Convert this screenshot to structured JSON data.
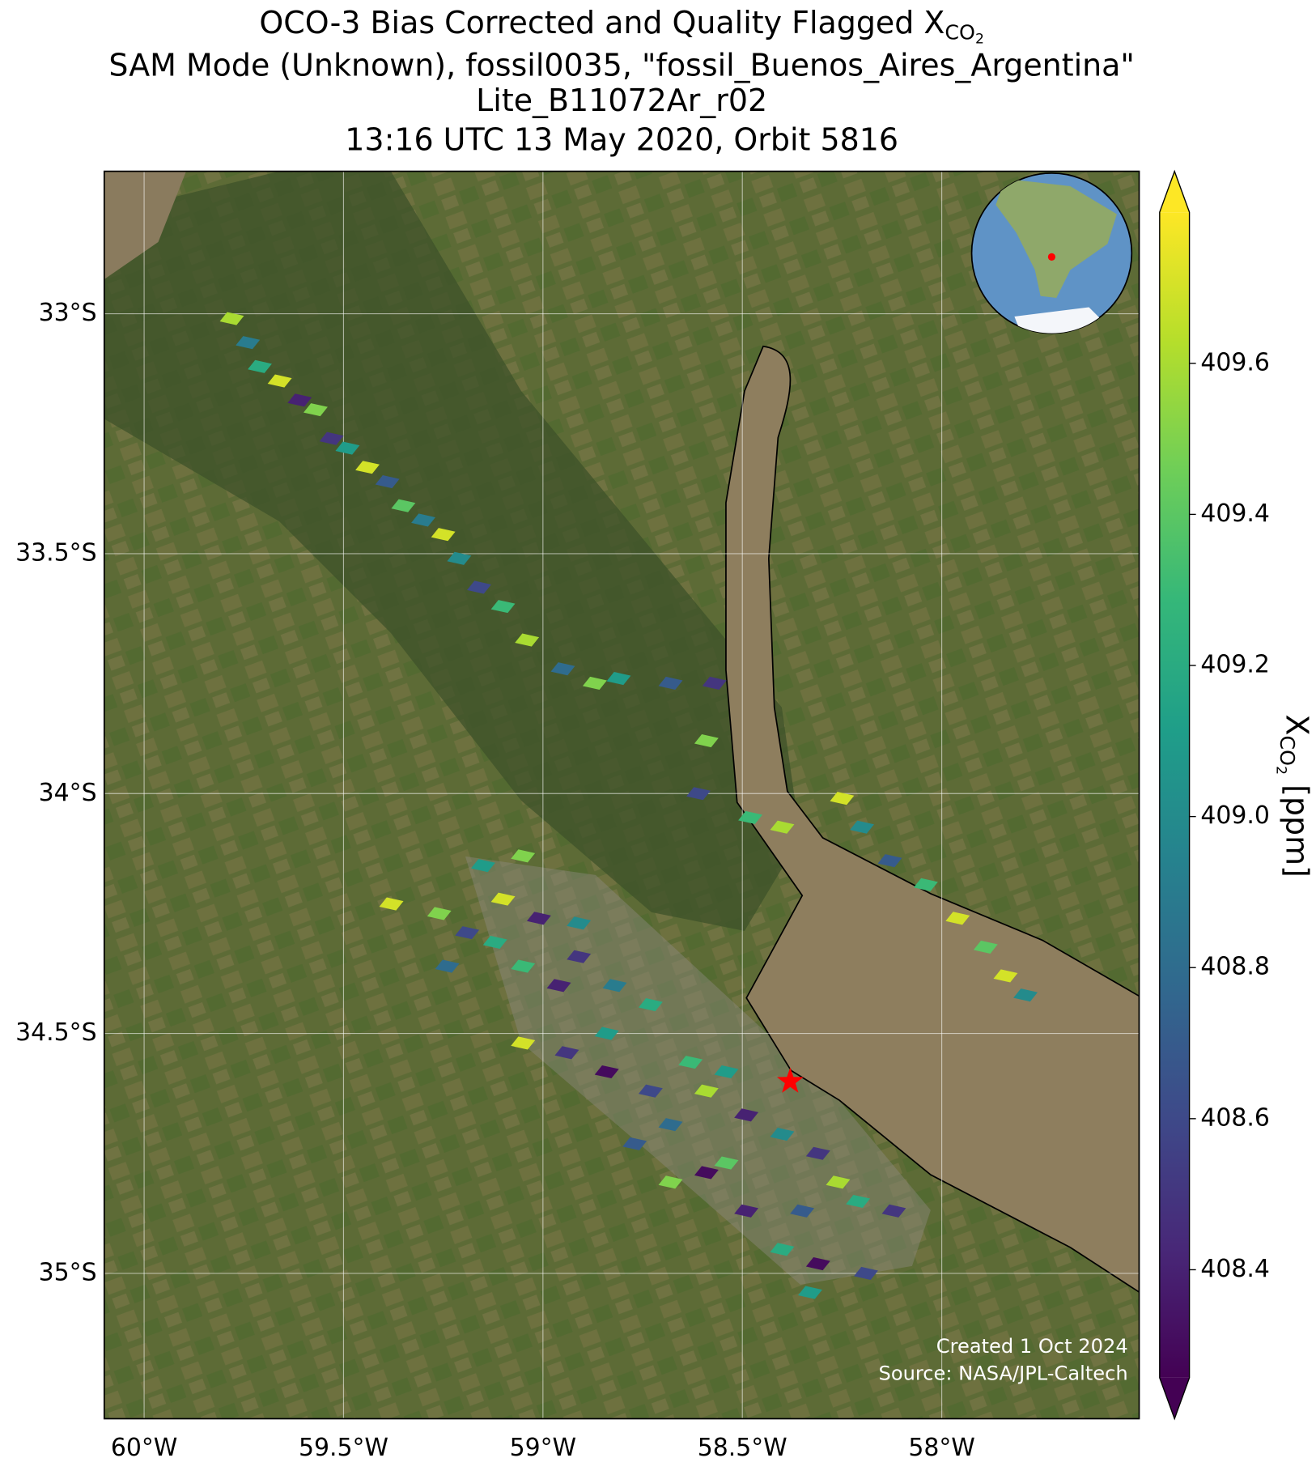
{
  "chart_data": {
    "type": "map",
    "title": {
      "text": "OCO-3 Bias Corrected and Quality Flagged X",
      "subscript": "CO",
      "subsubscript": "2"
    },
    "subtitle": [
      "SAM Mode (Unknown), fossil0035, \"fossil_Buenos_Aires_Argentina\"",
      "Lite_B11072Ar_r02",
      "13:16 UTC 13 May 2020, Orbit 5816"
    ],
    "xlim": [
      -60.1,
      -57.505
    ],
    "ylim": [
      -35.303,
      -32.703
    ],
    "xticks": [
      {
        "value": -60,
        "label": "60°W"
      },
      {
        "value": -59.5,
        "label": "59.5°W"
      },
      {
        "value": -59,
        "label": "59°W"
      },
      {
        "value": -58.5,
        "label": "58.5°W"
      },
      {
        "value": -58,
        "label": "58°W"
      }
    ],
    "yticks": [
      {
        "value": -33,
        "label": "33°S"
      },
      {
        "value": -33.5,
        "label": "33.5°S"
      },
      {
        "value": -34,
        "label": "34°S"
      },
      {
        "value": -34.5,
        "label": "34.5°S"
      },
      {
        "value": -35,
        "label": "35°S"
      }
    ],
    "grid": true,
    "colormap": "viridis",
    "clim": [
      408.257,
      409.8
    ],
    "colorbar_ticks": [
      408.4,
      408.6,
      408.8,
      {
        "value": 409,
        "label": "409.0"
      },
      409.2,
      409.4,
      409.6
    ],
    "colorbar_label": {
      "text": "X",
      "subscript": "CO",
      "subsubscript": "2",
      "unit": " [ppm]"
    },
    "site": {
      "x": -58.38,
      "y": -34.6,
      "color": "#ff0000"
    },
    "credits": [
      "Created 1 Oct 2024",
      "Source: NASA/JPL-Caltech"
    ],
    "soundings": {
      "x": [
        -59.78,
        -59.74,
        -59.71,
        -59.66,
        -59.61,
        -59.57,
        -59.53,
        -59.49,
        -59.44,
        -59.39,
        -59.35,
        -59.3,
        -59.25,
        -59.21,
        -59.16,
        -59.1,
        -59.04,
        -58.95,
        -58.87,
        -58.81,
        -58.68,
        -58.57,
        -58.59,
        -58.61,
        -58.48,
        -58.4,
        -58.25,
        -58.2,
        -58.13,
        -58.04,
        -57.96,
        -57.89,
        -57.84,
        -57.79,
        -59.38,
        -59.26,
        -59.19,
        -59.12,
        -59.24,
        -59.15,
        -59.05,
        -59.1,
        -59.01,
        -58.91,
        -58.91,
        -59.05,
        -58.96,
        -58.82,
        -58.73,
        -59.05,
        -58.94,
        -58.84,
        -58.73,
        -58.63,
        -58.54,
        -58.59,
        -58.68,
        -58.49,
        -58.4,
        -58.31,
        -58.26,
        -58.59,
        -58.68,
        -58.49,
        -58.35,
        -58.21,
        -58.12,
        -58.4,
        -58.31,
        -58.33,
        -58.19,
        -58.84,
        -58.77,
        -58.54
      ],
      "y": [
        -33.01,
        -33.06,
        -33.11,
        -33.14,
        -33.18,
        -33.2,
        -33.26,
        -33.28,
        -33.32,
        -33.35,
        -33.4,
        -33.43,
        -33.46,
        -33.51,
        -33.57,
        -33.61,
        -33.68,
        -33.74,
        -33.77,
        -33.76,
        -33.77,
        -33.77,
        -33.89,
        -34.0,
        -34.05,
        -34.07,
        -34.01,
        -34.07,
        -34.14,
        -34.19,
        -34.26,
        -34.32,
        -34.38,
        -34.42,
        -34.23,
        -34.25,
        -34.29,
        -34.31,
        -34.36,
        -34.15,
        -34.13,
        -34.22,
        -34.26,
        -34.27,
        -34.34,
        -34.36,
        -34.4,
        -34.4,
        -34.44,
        -34.52,
        -34.54,
        -34.58,
        -34.62,
        -34.56,
        -34.58,
        -34.62,
        -34.69,
        -34.67,
        -34.71,
        -34.75,
        -34.81,
        -34.79,
        -34.81,
        -34.87,
        -34.87,
        -34.85,
        -34.87,
        -34.95,
        -34.98,
        -35.04,
        -35.0,
        -34.5,
        -34.73,
        -34.77
      ],
      "values": [
        409.6,
        408.9,
        409.2,
        409.7,
        408.4,
        409.5,
        408.5,
        409.1,
        409.7,
        408.7,
        409.4,
        408.9,
        409.7,
        409.0,
        408.6,
        409.3,
        409.6,
        408.8,
        409.5,
        409.1,
        408.7,
        408.5,
        409.5,
        408.6,
        409.3,
        409.6,
        409.7,
        409.0,
        408.7,
        409.3,
        409.7,
        409.4,
        409.7,
        409.0,
        409.7,
        409.5,
        408.6,
        409.2,
        408.8,
        409.1,
        409.5,
        409.7,
        408.4,
        409.0,
        408.5,
        409.3,
        408.4,
        408.9,
        409.2,
        409.7,
        408.5,
        408.3,
        408.6,
        409.3,
        409.1,
        409.6,
        408.8,
        408.4,
        409.0,
        408.5,
        409.6,
        408.3,
        409.5,
        408.4,
        408.7,
        409.2,
        408.5,
        409.2,
        408.3,
        409.1,
        408.6,
        409.1,
        408.7,
        409.4
      ]
    }
  }
}
